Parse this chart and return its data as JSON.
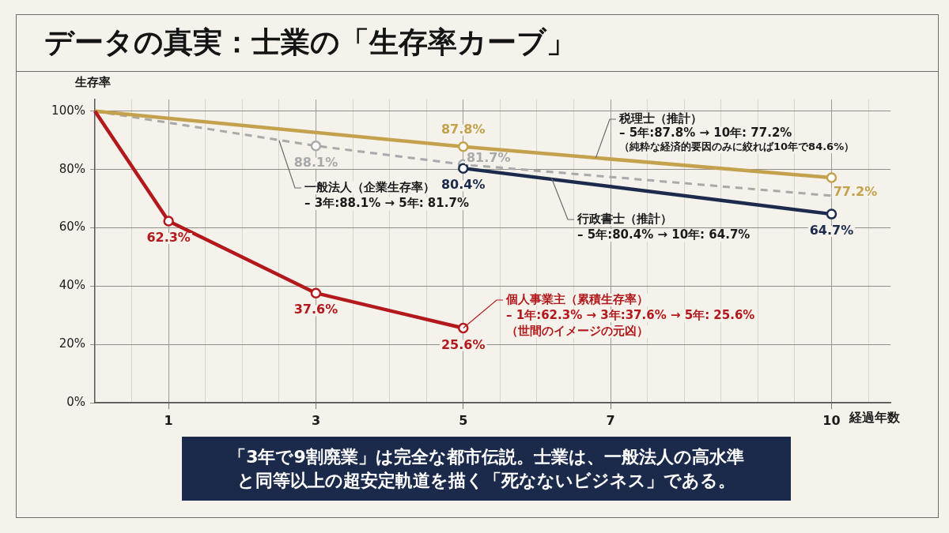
{
  "chart_data": {
    "type": "line",
    "title": "データの真実：士業の「生存率カーブ」",
    "xlabel": "経過年数",
    "ylabel": "生存率",
    "xlim": [
      0,
      10.8
    ],
    "xticks": [
      {
        "value": 0.5,
        "label": null
      },
      1,
      {
        "value": 1.5,
        "label": null
      },
      {
        "value": 2,
        "label": null
      },
      {
        "value": 2.5,
        "label": null
      },
      3,
      {
        "value": 3.5,
        "label": null
      },
      {
        "value": 4,
        "label": null
      },
      {
        "value": 4.5,
        "label": null
      },
      5,
      {
        "value": 5.5,
        "label": null
      },
      {
        "value": 6,
        "label": null
      },
      {
        "value": 6.5,
        "label": null
      },
      7,
      {
        "value": 7.5,
        "label": null
      },
      {
        "value": 8,
        "label": null
      },
      {
        "value": 8.5,
        "label": null
      },
      {
        "value": 9,
        "label": null
      },
      {
        "value": 9.5,
        "label": null
      },
      10,
      {
        "value": 10.5,
        "label": null
      }
    ],
    "ylim": [
      0,
      104
    ],
    "yticks": [
      {
        "value": 0,
        "label": "0%"
      },
      {
        "value": 20,
        "label": "20%"
      },
      {
        "value": 40,
        "label": "40%"
      },
      {
        "value": 60,
        "label": "60%"
      },
      {
        "value": 80,
        "label": "80%"
      },
      {
        "value": 100,
        "label": "100%"
      }
    ],
    "grid": true,
    "marker": "circle",
    "series": [
      {
        "name": "個人事業主（累積生存率）",
        "color": "#b3191c",
        "x": [
          0,
          1,
          3,
          5
        ],
        "values": [
          100,
          62.3,
          37.6,
          25.6
        ],
        "value_labels": [
          null,
          "62.3%",
          "37.6%",
          "25.6%"
        ]
      },
      {
        "name": "税理士（推計）",
        "color": "#c4a24d",
        "x": [
          0,
          5,
          10
        ],
        "values": [
          100,
          87.8,
          77.2
        ],
        "value_labels": [
          null,
          "87.8%",
          "77.2%"
        ]
      },
      {
        "name": "行政書士（推計）",
        "color": "#1c2b4b",
        "x": [
          5,
          10
        ],
        "values": [
          80.4,
          64.7
        ],
        "value_labels": [
          "80.4%",
          "64.7%"
        ]
      },
      {
        "name": "一般法人（企業生存率）",
        "color": "#a9a9a9",
        "line_style": "dashed",
        "x": [
          0,
          3,
          5,
          10
        ],
        "values": [
          100,
          88.1,
          81.7,
          71
        ],
        "value_labels": [
          null,
          "88.1%",
          "81.7%",
          null
        ]
      }
    ],
    "annotations": [
      {
        "text": "– 1年:62.3% → 3年:37.6% → 5年: 25.6%",
        "x": 5,
        "y": 25.6
      },
      "（世間のイメージの元凶）",
      {
        "text": "– 5年:87.8% → 10年: 77.2%",
        "x": 6.8,
        "y": 84
      },
      "（純粋な経済的要因のみに絞れば10年で84.6%）",
      {
        "text": "– 5年:80.4% → 10年: 64.7%",
        "x": 6.2,
        "y": 77
      },
      {
        "text": "– 3年:88.1% → 5年: 81.7%",
        "x": 2.5,
        "y": 90
      },
      "「3年で9割廃業」は完全な都市伝説。士業は、一般法人の高水準と同等以上の超安定軌道を描く「死なないビジネス」である。"
    ]
  }
}
